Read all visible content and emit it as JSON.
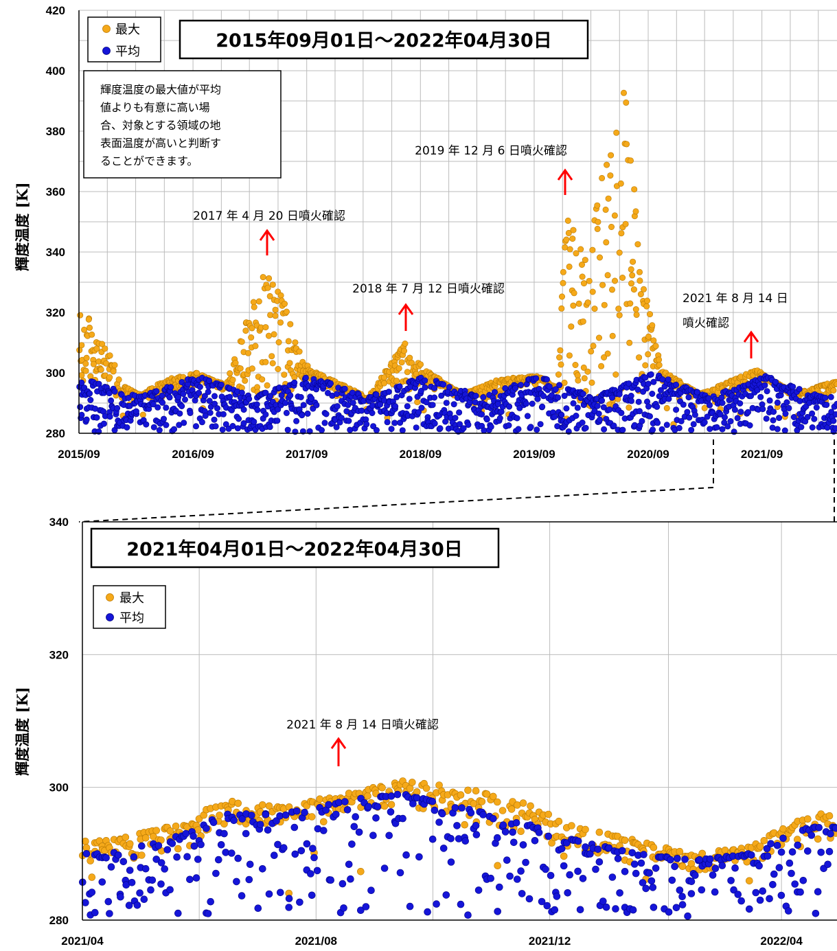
{
  "colors": {
    "max": "#F5A91A",
    "mean": "#1515D8",
    "arrow": "#FF0000",
    "grid": "#BBBBBB"
  },
  "chart_data": [
    {
      "type": "scatter",
      "title": "2015年09月01日～2022年04月30日",
      "ylabel": "輝度温度 [K]",
      "xlabel": "",
      "ylim": [
        280,
        420
      ],
      "yticks": [
        "280",
        "300",
        "320",
        "340",
        "360",
        "380",
        "400",
        "420"
      ],
      "xticks": [
        "2015/09",
        "2016/09",
        "2017/09",
        "2018/09",
        "2019/09",
        "2020/09",
        "2021/09"
      ],
      "xrange": [
        "2015-09-01",
        "2022-04-30"
      ],
      "grid": true,
      "legend": {
        "position": "top-left",
        "entries": [
          "最大",
          "平均"
        ]
      },
      "note": [
        "輝度温度の最大値が平均",
        "値よりも有意に高い場",
        "合、対象とする領域の地",
        "表面温度が高いと判断す",
        "ることができます。"
      ],
      "annotations": [
        {
          "text": "2017 年 4 月 20 日噴火確認",
          "date": "2017-04-20"
        },
        {
          "text": "2018 年 7 月 12 日噴火確認",
          "date": "2018-07-12"
        },
        {
          "text": "2019 年 12 月 6 日噴火確認",
          "date": "2019-12-06"
        },
        {
          "text_lines": [
            "2021 年 8 月 14 日",
            "噴火確認"
          ],
          "date": "2021-08-14"
        }
      ],
      "series": [
        {
          "name": "最大",
          "description_points": [
            [
              "2015-09",
              321
            ],
            [
              "2015-12",
              305
            ],
            [
              "2016-01",
              296
            ],
            [
              "2016-03",
              293
            ],
            [
              "2016-06",
              298
            ],
            [
              "2016-09",
              300
            ],
            [
              "2016-12",
              296
            ],
            [
              "2017-04",
              334
            ],
            [
              "2017-06",
              325
            ],
            [
              "2017-08",
              305
            ],
            [
              "2017-09",
              301
            ],
            [
              "2018-03",
              292
            ],
            [
              "2018-07",
              310
            ],
            [
              "2018-09",
              301
            ],
            [
              "2019-01",
              293
            ],
            [
              "2019-05",
              298
            ],
            [
              "2019-09",
              299
            ],
            [
              "2019-11",
              295
            ],
            [
              "2019-12",
              353
            ],
            [
              "2020-02",
              340
            ],
            [
              "2020-06",
              400
            ],
            [
              "2020-08",
              330
            ],
            [
              "2020-10",
              301
            ],
            [
              "2021-02",
              293
            ],
            [
              "2021-08",
              301
            ],
            [
              "2021-12",
              293
            ],
            [
              "2022-04",
              297
            ]
          ]
        },
        {
          "name": "平均",
          "description_points": [
            [
              "2015-09",
              298
            ],
            [
              "2016-03",
              292
            ],
            [
              "2016-09",
              299
            ],
            [
              "2017-03",
              292
            ],
            [
              "2017-09",
              299
            ],
            [
              "2018-03",
              292
            ],
            [
              "2018-09",
              299
            ],
            [
              "2019-03",
              292
            ],
            [
              "2019-09",
              299
            ],
            [
              "2020-03",
              292
            ],
            [
              "2020-09",
              300
            ],
            [
              "2021-03",
              292
            ],
            [
              "2021-09",
              299
            ],
            [
              "2022-03",
              292
            ]
          ]
        }
      ]
    },
    {
      "type": "scatter",
      "title": "2021年04月01日～2022年04月30日",
      "ylabel": "輝度温度 [K]",
      "xlabel": "",
      "ylim": [
        280,
        340
      ],
      "yticks": [
        "280",
        "300",
        "320",
        "340"
      ],
      "xticks": [
        "2021/04",
        "2021/08",
        "2021/12",
        "2022/04"
      ],
      "xrange": [
        "2021-04-01",
        "2022-04-30"
      ],
      "grid": true,
      "legend": {
        "position": "top-left",
        "entries": [
          "最大",
          "平均"
        ]
      },
      "annotations": [
        {
          "text": "2021 年 8 月 14 日噴火確認",
          "date": "2021-08-14"
        }
      ],
      "series": [
        {
          "name": "最大",
          "description_points": [
            [
              "2021-04",
              292
            ],
            [
              "2021-05",
              294
            ],
            [
              "2021-06",
              298
            ],
            [
              "2021-07",
              297
            ],
            [
              "2021-08",
              299
            ],
            [
              "2021-09",
              301
            ],
            [
              "2021-10",
              300
            ],
            [
              "2021-11",
              298
            ],
            [
              "2021-12",
              294
            ],
            [
              "2022-01",
              292
            ],
            [
              "2022-02",
              290
            ],
            [
              "2022-03",
              291
            ],
            [
              "2022-04",
              296
            ]
          ]
        },
        {
          "name": "平均",
          "description_points": [
            [
              "2021-04",
              290
            ],
            [
              "2021-05",
              292
            ],
            [
              "2021-06",
              296
            ],
            [
              "2021-07",
              296
            ],
            [
              "2021-08",
              298
            ],
            [
              "2021-09",
              299
            ],
            [
              "2021-10",
              297
            ],
            [
              "2021-11",
              295
            ],
            [
              "2021-12",
              292
            ],
            [
              "2022-01",
              290
            ],
            [
              "2022-02",
              289
            ],
            [
              "2022-03",
              290
            ],
            [
              "2022-04",
              294
            ]
          ]
        }
      ]
    }
  ]
}
